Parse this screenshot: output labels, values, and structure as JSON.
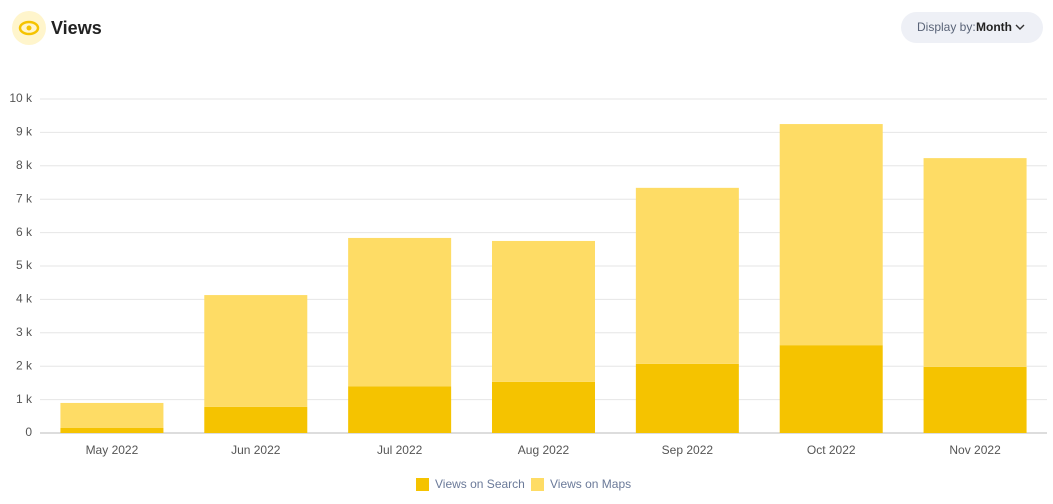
{
  "header": {
    "title": "Views",
    "display_label": "Display by:",
    "display_value": "Month"
  },
  "chart_data": {
    "type": "stacked-bar",
    "categories": [
      "May 2022",
      "Jun 2022",
      "Jul 2022",
      "Aug 2022",
      "Sep 2022",
      "Oct 2022",
      "Nov 2022"
    ],
    "series": [
      {
        "name": "Views on Search",
        "color": "#f5c300",
        "values": [
          150,
          780,
          1400,
          1530,
          2070,
          2630,
          1980
        ]
      },
      {
        "name": "Views on Maps",
        "color": "#fedc65",
        "values": [
          750,
          3350,
          4440,
          4220,
          5270,
          6620,
          6250
        ]
      }
    ],
    "ylim": [
      0,
      10000
    ],
    "yticks": [
      0,
      {
        "value": 1000,
        "label": "1 k"
      },
      {
        "value": 2000,
        "label": "2 k"
      },
      {
        "value": 3000,
        "label": "3 k"
      },
      {
        "value": 4000,
        "label": "4 k"
      },
      {
        "value": 5000,
        "label": "5 k"
      },
      {
        "value": 6000,
        "label": "6 k"
      },
      {
        "value": 7000,
        "label": "7 k"
      },
      {
        "value": 8000,
        "label": "8 k"
      },
      {
        "value": 9000,
        "label": "9 k"
      },
      {
        "value": 10000,
        "label": "10 k"
      }
    ],
    "grid": true
  }
}
